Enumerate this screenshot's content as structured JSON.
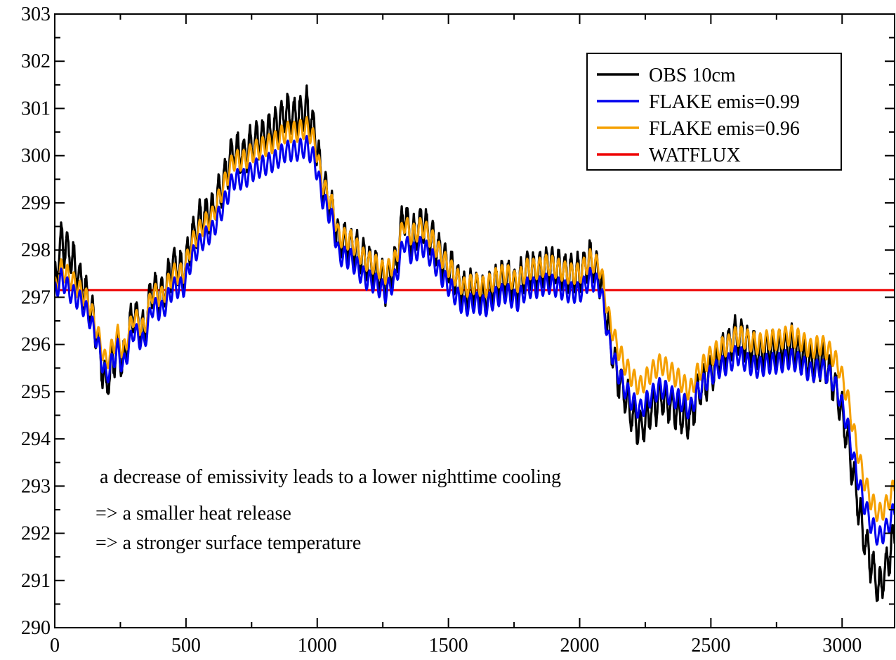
{
  "chart_data": {
    "type": "line",
    "title": "",
    "xlabel": "",
    "ylabel": "",
    "xlim": [
      0,
      3200
    ],
    "ylim": [
      290,
      303
    ],
    "x_ticks": [
      0,
      500,
      1000,
      1500,
      2000,
      2500,
      3000
    ],
    "y_ticks": [
      290,
      291,
      292,
      293,
      294,
      295,
      296,
      297,
      298,
      299,
      300,
      301,
      302,
      303
    ],
    "grid": false,
    "legend_position": "top-right",
    "series": [
      {
        "name": "OBS 10cm",
        "color": "#000000",
        "style": "noisy",
        "points": [
          [
            0,
            297.3
          ],
          [
            25,
            298.2
          ],
          [
            60,
            297.9
          ],
          [
            100,
            297.3
          ],
          [
            130,
            296.9
          ],
          [
            160,
            296.2
          ],
          [
            195,
            295.1
          ],
          [
            240,
            296.0
          ],
          [
            260,
            295.6
          ],
          [
            300,
            296.7
          ],
          [
            340,
            296.2
          ],
          [
            370,
            297.2
          ],
          [
            410,
            297.0
          ],
          [
            450,
            297.7
          ],
          [
            490,
            297.5
          ],
          [
            520,
            298.2
          ],
          [
            560,
            298.7
          ],
          [
            600,
            298.8
          ],
          [
            640,
            299.4
          ],
          [
            680,
            300.1
          ],
          [
            720,
            300.0
          ],
          [
            760,
            300.3
          ],
          [
            800,
            300.4
          ],
          [
            840,
            300.6
          ],
          [
            880,
            300.9
          ],
          [
            920,
            300.8
          ],
          [
            960,
            301.0
          ],
          [
            990,
            300.5
          ],
          [
            1020,
            299.4
          ],
          [
            1060,
            298.8
          ],
          [
            1080,
            298.2
          ],
          [
            1130,
            298.1
          ],
          [
            1180,
            297.8
          ],
          [
            1220,
            297.6
          ],
          [
            1260,
            297.3
          ],
          [
            1300,
            297.7
          ],
          [
            1330,
            298.8
          ],
          [
            1360,
            298.2
          ],
          [
            1400,
            298.6
          ],
          [
            1440,
            298.2
          ],
          [
            1480,
            297.8
          ],
          [
            1520,
            297.5
          ],
          [
            1560,
            297.1
          ],
          [
            1600,
            297.2
          ],
          [
            1640,
            297.0
          ],
          [
            1680,
            297.3
          ],
          [
            1720,
            297.4
          ],
          [
            1760,
            297.2
          ],
          [
            1800,
            297.6
          ],
          [
            1840,
            297.5
          ],
          [
            1880,
            297.7
          ],
          [
            1920,
            297.6
          ],
          [
            1960,
            297.5
          ],
          [
            2000,
            297.5
          ],
          [
            2040,
            297.8
          ],
          [
            2080,
            297.4
          ],
          [
            2110,
            296.3
          ],
          [
            2140,
            295.4
          ],
          [
            2170,
            295.0
          ],
          [
            2200,
            294.5
          ],
          [
            2230,
            294.2
          ],
          [
            2270,
            294.6
          ],
          [
            2310,
            294.9
          ],
          [
            2350,
            294.7
          ],
          [
            2390,
            294.5
          ],
          [
            2420,
            294.4
          ],
          [
            2450,
            295.0
          ],
          [
            2490,
            295.3
          ],
          [
            2530,
            295.7
          ],
          [
            2570,
            296.0
          ],
          [
            2600,
            296.2
          ],
          [
            2640,
            296.0
          ],
          [
            2680,
            295.8
          ],
          [
            2720,
            295.9
          ],
          [
            2760,
            295.9
          ],
          [
            2800,
            296.0
          ],
          [
            2840,
            295.8
          ],
          [
            2880,
            295.6
          ],
          [
            2920,
            295.7
          ],
          [
            2960,
            295.3
          ],
          [
            2990,
            294.8
          ],
          [
            3020,
            294.0
          ],
          [
            3050,
            293.0
          ],
          [
            3080,
            292.0
          ],
          [
            3110,
            291.4
          ],
          [
            3140,
            290.8
          ],
          [
            3170,
            291.3
          ],
          [
            3200,
            292.0
          ]
        ]
      },
      {
        "name": "FLAKE emis=0.99",
        "color": "#0000ee",
        "style": "diurnal",
        "points": [
          [
            0,
            297.1
          ],
          [
            25,
            297.4
          ],
          [
            60,
            297.1
          ],
          [
            100,
            296.9
          ],
          [
            130,
            296.6
          ],
          [
            160,
            296.1
          ],
          [
            195,
            295.3
          ],
          [
            240,
            295.9
          ],
          [
            260,
            295.5
          ],
          [
            300,
            296.3
          ],
          [
            340,
            296.0
          ],
          [
            370,
            296.8
          ],
          [
            410,
            296.7
          ],
          [
            450,
            297.2
          ],
          [
            490,
            297.2
          ],
          [
            520,
            297.8
          ],
          [
            560,
            298.2
          ],
          [
            600,
            298.4
          ],
          [
            640,
            298.9
          ],
          [
            680,
            299.5
          ],
          [
            720,
            299.5
          ],
          [
            760,
            299.7
          ],
          [
            800,
            299.8
          ],
          [
            840,
            299.9
          ],
          [
            880,
            300.1
          ],
          [
            920,
            300.1
          ],
          [
            960,
            300.2
          ],
          [
            990,
            299.9
          ],
          [
            1020,
            299.1
          ],
          [
            1060,
            298.6
          ],
          [
            1080,
            297.9
          ],
          [
            1130,
            297.8
          ],
          [
            1180,
            297.4
          ],
          [
            1220,
            297.3
          ],
          [
            1260,
            297.1
          ],
          [
            1300,
            297.4
          ],
          [
            1330,
            298.2
          ],
          [
            1360,
            297.9
          ],
          [
            1400,
            298.1
          ],
          [
            1440,
            297.8
          ],
          [
            1480,
            297.4
          ],
          [
            1520,
            297.1
          ],
          [
            1560,
            296.8
          ],
          [
            1600,
            296.9
          ],
          [
            1640,
            296.8
          ],
          [
            1680,
            297.0
          ],
          [
            1720,
            297.1
          ],
          [
            1760,
            296.9
          ],
          [
            1800,
            297.2
          ],
          [
            1840,
            297.2
          ],
          [
            1880,
            297.3
          ],
          [
            1920,
            297.2
          ],
          [
            1960,
            297.1
          ],
          [
            2000,
            297.1
          ],
          [
            2040,
            297.4
          ],
          [
            2080,
            297.2
          ],
          [
            2110,
            296.1
          ],
          [
            2140,
            295.5
          ],
          [
            2170,
            295.1
          ],
          [
            2200,
            294.8
          ],
          [
            2230,
            294.6
          ],
          [
            2270,
            294.9
          ],
          [
            2310,
            295.1
          ],
          [
            2350,
            294.9
          ],
          [
            2390,
            294.8
          ],
          [
            2420,
            294.6
          ],
          [
            2450,
            295.0
          ],
          [
            2490,
            295.3
          ],
          [
            2530,
            295.5
          ],
          [
            2570,
            295.6
          ],
          [
            2600,
            295.8
          ],
          [
            2640,
            295.6
          ],
          [
            2680,
            295.5
          ],
          [
            2720,
            295.6
          ],
          [
            2760,
            295.6
          ],
          [
            2800,
            295.7
          ],
          [
            2840,
            295.6
          ],
          [
            2880,
            295.4
          ],
          [
            2920,
            295.5
          ],
          [
            2960,
            295.3
          ],
          [
            2990,
            294.9
          ],
          [
            3020,
            294.3
          ],
          [
            3050,
            293.4
          ],
          [
            3080,
            292.7
          ],
          [
            3110,
            292.2
          ],
          [
            3140,
            291.9
          ],
          [
            3170,
            292.1
          ],
          [
            3200,
            292.5
          ]
        ]
      },
      {
        "name": "FLAKE emis=0.96",
        "color": "#f5a000",
        "style": "diurnal",
        "points": [
          [
            0,
            297.2
          ],
          [
            25,
            297.6
          ],
          [
            60,
            297.4
          ],
          [
            100,
            297.1
          ],
          [
            130,
            296.9
          ],
          [
            160,
            296.3
          ],
          [
            195,
            295.6
          ],
          [
            240,
            296.2
          ],
          [
            260,
            295.8
          ],
          [
            300,
            296.6
          ],
          [
            340,
            296.3
          ],
          [
            370,
            297.1
          ],
          [
            410,
            297.0
          ],
          [
            450,
            297.5
          ],
          [
            490,
            297.5
          ],
          [
            520,
            298.1
          ],
          [
            560,
            298.5
          ],
          [
            600,
            298.7
          ],
          [
            640,
            299.3
          ],
          [
            680,
            299.9
          ],
          [
            720,
            299.9
          ],
          [
            760,
            300.1
          ],
          [
            800,
            300.2
          ],
          [
            840,
            300.3
          ],
          [
            880,
            300.5
          ],
          [
            920,
            300.5
          ],
          [
            960,
            300.6
          ],
          [
            990,
            300.3
          ],
          [
            1020,
            299.4
          ],
          [
            1060,
            298.9
          ],
          [
            1080,
            298.3
          ],
          [
            1130,
            298.2
          ],
          [
            1180,
            297.8
          ],
          [
            1220,
            297.7
          ],
          [
            1260,
            297.5
          ],
          [
            1300,
            297.8
          ],
          [
            1330,
            298.6
          ],
          [
            1360,
            298.3
          ],
          [
            1400,
            298.5
          ],
          [
            1440,
            298.2
          ],
          [
            1480,
            297.8
          ],
          [
            1520,
            297.5
          ],
          [
            1560,
            297.2
          ],
          [
            1600,
            297.3
          ],
          [
            1640,
            297.2
          ],
          [
            1680,
            297.4
          ],
          [
            1720,
            297.5
          ],
          [
            1760,
            297.3
          ],
          [
            1800,
            297.6
          ],
          [
            1840,
            297.6
          ],
          [
            1880,
            297.7
          ],
          [
            1920,
            297.6
          ],
          [
            1960,
            297.5
          ],
          [
            2000,
            297.5
          ],
          [
            2040,
            297.8
          ],
          [
            2080,
            297.6
          ],
          [
            2110,
            296.6
          ],
          [
            2140,
            296.0
          ],
          [
            2170,
            295.6
          ],
          [
            2200,
            295.3
          ],
          [
            2230,
            295.1
          ],
          [
            2270,
            295.4
          ],
          [
            2310,
            295.6
          ],
          [
            2350,
            295.4
          ],
          [
            2390,
            295.2
          ],
          [
            2420,
            295.0
          ],
          [
            2450,
            295.4
          ],
          [
            2490,
            295.7
          ],
          [
            2530,
            295.9
          ],
          [
            2570,
            296.0
          ],
          [
            2600,
            296.2
          ],
          [
            2640,
            296.1
          ],
          [
            2680,
            296.0
          ],
          [
            2720,
            296.1
          ],
          [
            2760,
            296.1
          ],
          [
            2800,
            296.2
          ],
          [
            2840,
            296.1
          ],
          [
            2880,
            295.9
          ],
          [
            2920,
            296.0
          ],
          [
            2960,
            295.8
          ],
          [
            2990,
            295.5
          ],
          [
            3020,
            294.9
          ],
          [
            3050,
            294.0
          ],
          [
            3080,
            293.2
          ],
          [
            3110,
            292.7
          ],
          [
            3140,
            292.4
          ],
          [
            3170,
            292.6
          ],
          [
            3200,
            293.0
          ]
        ]
      },
      {
        "name": "WATFLUX",
        "color": "#ee0000",
        "style": "flat",
        "points": [
          [
            0,
            297.15
          ],
          [
            3200,
            297.15
          ]
        ]
      }
    ],
    "annotations": [
      "a decrease of emissivity leads to a lower nighttime cooling",
      "=> a smaller heat release",
      "=> a stronger surface temperature"
    ]
  }
}
